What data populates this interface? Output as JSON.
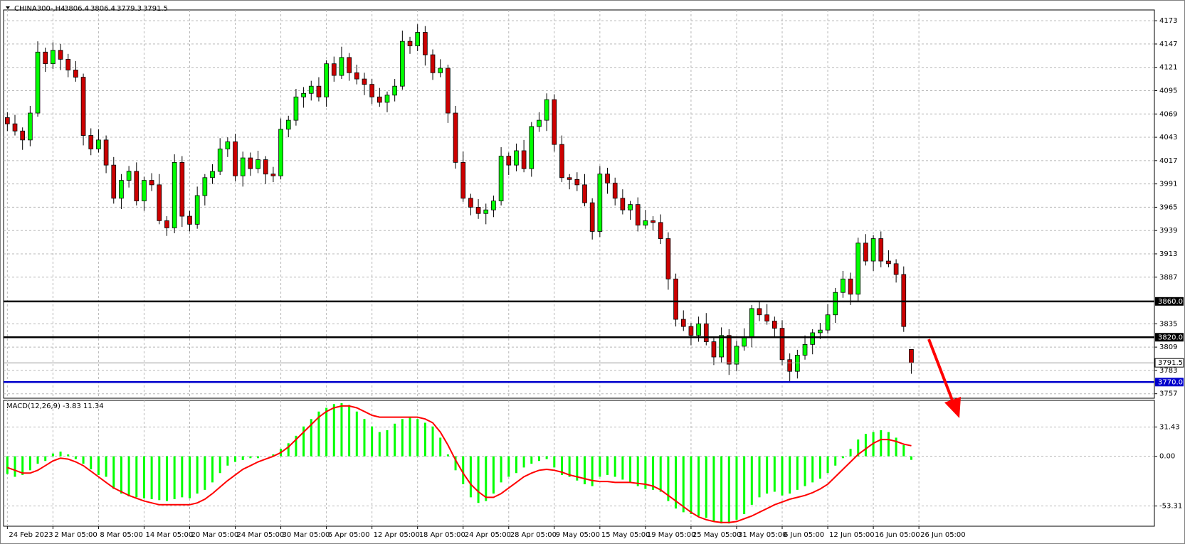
{
  "chart_data": [
    {
      "type": "candlestick",
      "title": "CHINA300-,H4",
      "xlim": [
        -0.5,
        151
      ],
      "ylim": [
        3752,
        4185
      ],
      "grid": true,
      "up_color": "#00ff00",
      "down_color": "#cc0000",
      "wick_color": "#000000",
      "xticks": [
        {
          "value": 0,
          "label": "24 Feb 2023"
        },
        {
          "value": 6,
          "label": "2 Mar 05:00"
        },
        {
          "value": 12,
          "label": "8 Mar 05:00"
        },
        {
          "value": 18,
          "label": "14 Mar 05:00"
        },
        {
          "value": 24,
          "label": "20 Mar 05:00"
        },
        {
          "value": 30,
          "label": "24 Mar 05:00"
        },
        {
          "value": 36,
          "label": "30 Mar 05:00"
        },
        {
          "value": 42,
          "label": "6 Apr 05:00"
        },
        {
          "value": 48,
          "label": "12 Apr 05:00"
        },
        {
          "value": 54,
          "label": "18 Apr 05:00"
        },
        {
          "value": 60,
          "label": "24 Apr 05:00"
        },
        {
          "value": 66,
          "label": "28 Apr 05:00"
        },
        {
          "value": 72,
          "label": "9 May 05:00"
        },
        {
          "value": 78,
          "label": "15 May 05:00"
        },
        {
          "value": 84,
          "label": "19 May 05:00"
        },
        {
          "value": 90,
          "label": "25 May 05:00"
        },
        {
          "value": 96,
          "label": "31 May 05:00"
        },
        {
          "value": 102,
          "label": "6 Jun 05:00"
        },
        {
          "value": 108,
          "label": "12 Jun 05:00"
        },
        {
          "value": 114,
          "label": "16 Jun 05:00"
        },
        {
          "value": 120,
          "label": "26 Jun 05:00"
        }
      ],
      "yticks": [
        4173,
        4147,
        4121,
        4095,
        4069,
        4043,
        4017,
        3991,
        3965,
        3939,
        3913,
        3887,
        3835,
        3809,
        3783,
        3757
      ],
      "levels": [
        {
          "value": 3860,
          "label": "3860.0",
          "color": "#000000"
        },
        {
          "value": 3820,
          "label": "3820.0",
          "color": "#000000"
        },
        {
          "value": 3770,
          "label": "3770.0",
          "color": "#0000cc"
        }
      ],
      "open": [
        4065,
        4058,
        4050,
        4040,
        4070,
        4138,
        4125,
        4140,
        4130,
        4118,
        4110,
        4045,
        4030,
        4040,
        4012,
        3975,
        3995,
        4005,
        3972,
        3995,
        3990,
        3950,
        3942,
        4015,
        3955,
        3946,
        3978,
        3998,
        4005,
        4030,
        4038,
        4000,
        4020,
        4008,
        4018,
        4002,
        4000,
        4052,
        4062,
        4088,
        4092,
        4100,
        4088,
        4125,
        4112,
        4132,
        4115,
        4108,
        4102,
        4088,
        4082,
        4090,
        4100,
        4150,
        4145,
        4160,
        4135,
        4115,
        4120,
        4070,
        4015,
        3975,
        3965,
        3958,
        3962,
        3972,
        4022,
        4012,
        4028,
        4008,
        4055,
        4062,
        4085,
        4035,
        3998,
        3996,
        3990,
        3970,
        3938,
        4002,
        3992,
        3975,
        3962,
        3968,
        3945,
        3950,
        3948,
        3930,
        3885,
        3840,
        3832,
        3822,
        3835,
        3815,
        3798,
        3822,
        3790,
        3810,
        3820,
        3852,
        3845,
        3838,
        3830,
        3795,
        3782,
        3800,
        3812,
        3825,
        3828,
        3845,
        3870,
        3885,
        3868,
        3925,
        3905,
        3930,
        3905,
        3902,
        3890,
        3806.4
      ],
      "high": [
        4071,
        4068,
        4054,
        4078,
        4150,
        4143,
        4149,
        4147,
        4136,
        4128,
        4114,
        4053,
        4052,
        4045,
        4021,
        4002,
        4011,
        4015,
        3999,
        4003,
        4002,
        3955,
        4024,
        4022,
        3961,
        3988,
        4002,
        4013,
        4042,
        4043,
        4047,
        4027,
        4026,
        4028,
        4022,
        4010,
        4064,
        4067,
        4097,
        4099,
        4106,
        4110,
        4129,
        4133,
        4144,
        4137,
        4124,
        4115,
        4108,
        4098,
        4094,
        4108,
        4162,
        4155,
        4169,
        4167,
        4141,
        4130,
        4124,
        4078,
        4027,
        3980,
        3974,
        3969,
        3978,
        4032,
        4026,
        4036,
        4040,
        4060,
        4071,
        4092,
        4091,
        4045,
        4002,
        4004,
        4002,
        3975,
        4011,
        4009,
        3998,
        3985,
        3972,
        3976,
        3962,
        3955,
        3957,
        3937,
        3891,
        3850,
        3836,
        3843,
        3847,
        3820,
        3831,
        3829,
        3816,
        3830,
        3856,
        3860,
        3857,
        3843,
        3839,
        3802,
        3806,
        3822,
        3829,
        3836,
        3857,
        3875,
        3894,
        3892,
        3931,
        3935,
        3934,
        3938,
        3917,
        3907,
        3899,
        3806.4
      ],
      "low": [
        4050,
        4045,
        4029,
        4033,
        4066,
        4116,
        4119,
        4118,
        4110,
        4105,
        4034,
        4023,
        4026,
        4003,
        3969,
        3963,
        3987,
        3967,
        3961,
        3983,
        3946,
        3933,
        3936,
        3943,
        3938,
        3941,
        3967,
        3991,
        4001,
        4021,
        3994,
        3988,
        4000,
        4003,
        3991,
        3993,
        3996,
        4043,
        4056,
        4076,
        4084,
        4083,
        4077,
        4105,
        4108,
        4106,
        4102,
        4090,
        4080,
        4077,
        4071,
        4083,
        4096,
        4136,
        4139,
        4123,
        4107,
        4110,
        4059,
        4008,
        3971,
        3956,
        3952,
        3946,
        3954,
        3967,
        4001,
        4005,
        4004,
        3999,
        4049,
        4050,
        4027,
        3993,
        3985,
        3983,
        3966,
        3929,
        3932,
        3980,
        3967,
        3957,
        3951,
        3938,
        3941,
        3939,
        3924,
        3873,
        3832,
        3827,
        3811,
        3815,
        3811,
        3789,
        3792,
        3778,
        3782,
        3805,
        3809,
        3838,
        3834,
        3821,
        3789,
        3770,
        3774,
        3795,
        3801,
        3818,
        3824,
        3836,
        3864,
        3856,
        3860,
        3900,
        3894,
        3898,
        3898,
        3881,
        3826,
        3779.3
      ],
      "close": [
        4058,
        4050,
        4040,
        4070,
        4138,
        4125,
        4140,
        4130,
        4118,
        4110,
        4045,
        4030,
        4040,
        4012,
        3975,
        3995,
        4005,
        3972,
        3995,
        3990,
        3950,
        3942,
        4015,
        3955,
        3946,
        3978,
        3998,
        4005,
        4030,
        4038,
        4000,
        4020,
        4008,
        4018,
        4002,
        4000,
        4052,
        4062,
        4088,
        4092,
        4100,
        4088,
        4125,
        4112,
        4132,
        4115,
        4108,
        4102,
        4088,
        4082,
        4090,
        4100,
        4150,
        4145,
        4160,
        4135,
        4115,
        4120,
        4070,
        4015,
        3975,
        3965,
        3958,
        3962,
        3972,
        4022,
        4012,
        4028,
        4008,
        4055,
        4062,
        4085,
        4035,
        3998,
        3996,
        3990,
        3970,
        3938,
        4002,
        3992,
        3975,
        3962,
        3968,
        3945,
        3950,
        3948,
        3930,
        3885,
        3840,
        3832,
        3822,
        3835,
        3815,
        3798,
        3822,
        3790,
        3810,
        3820,
        3852,
        3845,
        3838,
        3830,
        3795,
        3782,
        3800,
        3812,
        3825,
        3828,
        3845,
        3870,
        3885,
        3868,
        3925,
        3905,
        3930,
        3905,
        3902,
        3890,
        3832,
        3791.5
      ]
    },
    {
      "type": "macd",
      "title": "MACD(12,26,9)",
      "xlim": [
        -0.5,
        151
      ],
      "ylim": [
        -75,
        60
      ],
      "grid": true,
      "yticks": [
        31.43,
        {
          "value": 0,
          "label": "0.00"
        },
        -53.31
      ],
      "macd": {
        "color": "#00ff00",
        "values": [
          -19,
          -22,
          -20,
          -15,
          -8,
          -5,
          3,
          5,
          2,
          -3,
          -8,
          -14,
          -20,
          -22,
          -35,
          -40,
          -43,
          -44,
          -45,
          -46,
          -47,
          -48,
          -46,
          -44,
          -45,
          -40,
          -36,
          -28,
          -18,
          -10,
          -6,
          -4,
          -2,
          -2,
          0,
          2,
          8,
          14,
          22,
          32,
          40,
          48,
          52,
          56,
          57,
          55,
          48,
          40,
          32,
          26,
          28,
          35,
          40,
          42,
          40,
          36,
          32,
          20,
          2,
          -15,
          -30,
          -44,
          -50,
          -48,
          -40,
          -28,
          -22,
          -18,
          -12,
          -8,
          -5,
          -3,
          -12,
          -20,
          -22,
          -26,
          -30,
          -32,
          -22,
          -20,
          -22,
          -25,
          -28,
          -32,
          -35,
          -36,
          -38,
          -48,
          -56,
          -60,
          -62,
          -64,
          -66,
          -70,
          -72,
          -72,
          -68,
          -62,
          -52,
          -44,
          -40,
          -38,
          -42,
          -40,
          -36,
          -32,
          -28,
          -24,
          -18,
          -10,
          -2,
          8,
          18,
          24,
          26,
          28,
          26,
          20,
          12,
          -3.83
        ]
      },
      "signal": {
        "color": "#ff0000",
        "values": [
          -12,
          -15,
          -18,
          -18,
          -15,
          -10,
          -5,
          -2,
          -3,
          -6,
          -10,
          -16,
          -22,
          -28,
          -34,
          -38,
          -42,
          -45,
          -48,
          -50,
          -52,
          -52,
          -52,
          -52,
          -52,
          -50,
          -46,
          -40,
          -33,
          -26,
          -20,
          -14,
          -10,
          -6,
          -3,
          0,
          4,
          10,
          18,
          26,
          34,
          42,
          48,
          52,
          54,
          54,
          52,
          48,
          44,
          42,
          42,
          42,
          42,
          42,
          42,
          40,
          36,
          26,
          12,
          -4,
          -18,
          -30,
          -38,
          -44,
          -44,
          -40,
          -34,
          -28,
          -22,
          -18,
          -15,
          -14,
          -15,
          -17,
          -20,
          -22,
          -24,
          -26,
          -27,
          -27,
          -28,
          -28,
          -28,
          -29,
          -30,
          -32,
          -36,
          -42,
          -48,
          -54,
          -60,
          -65,
          -68,
          -70,
          -71,
          -71,
          -70,
          -67,
          -64,
          -60,
          -56,
          -52,
          -49,
          -46,
          -44,
          -42,
          -39,
          -35,
          -30,
          -22,
          -14,
          -6,
          2,
          8,
          14,
          18,
          18,
          16,
          13,
          11.34
        ]
      }
    }
  ]
}
